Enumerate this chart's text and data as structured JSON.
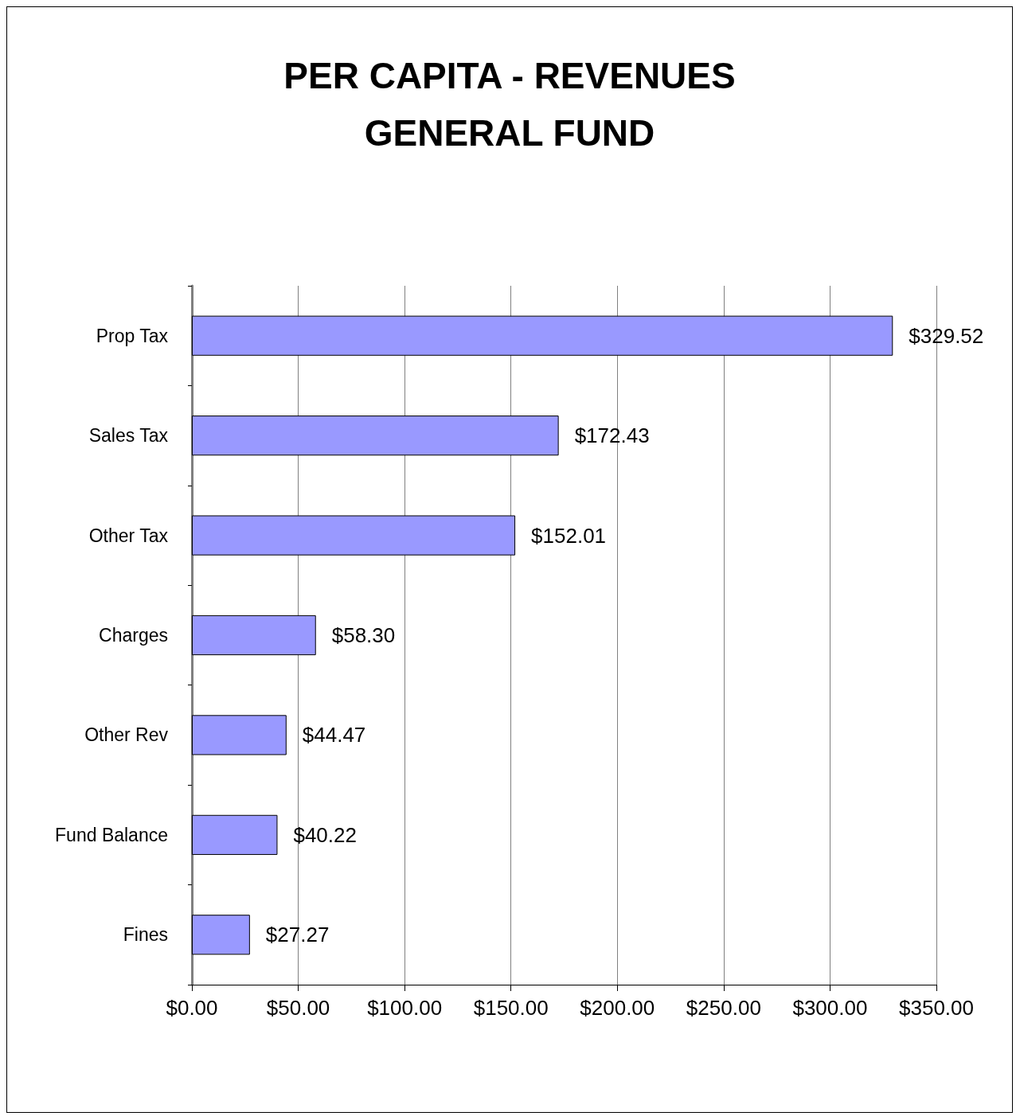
{
  "chart_data": {
    "type": "bar",
    "orientation": "horizontal",
    "title": "PER CAPITA - REVENUES\nGENERAL FUND",
    "categories": [
      "Prop Tax",
      "Sales Tax",
      "Other Tax",
      "Charges",
      "Other Rev",
      "Fund Balance",
      "Fines"
    ],
    "values": [
      329.52,
      172.43,
      152.01,
      58.3,
      44.47,
      40.22,
      27.27
    ],
    "value_labels": [
      "$329.52",
      "$172.43",
      "$152.01",
      "$58.30",
      "$44.47",
      "$40.22",
      "$27.27"
    ],
    "color": "#9999ff",
    "xlim": [
      0,
      350
    ],
    "xticks": [
      {
        "value": 0,
        "label": "$0.00"
      },
      {
        "value": 50,
        "label": "$50.00"
      },
      {
        "value": 100,
        "label": "$100.00"
      },
      {
        "value": 150,
        "label": "$150.00"
      },
      {
        "value": 200,
        "label": "$200.00"
      },
      {
        "value": 250,
        "label": "$250.00"
      },
      {
        "value": 300,
        "label": "$300.00"
      },
      {
        "value": 350,
        "label": "$350.00"
      }
    ],
    "grid": "x"
  }
}
